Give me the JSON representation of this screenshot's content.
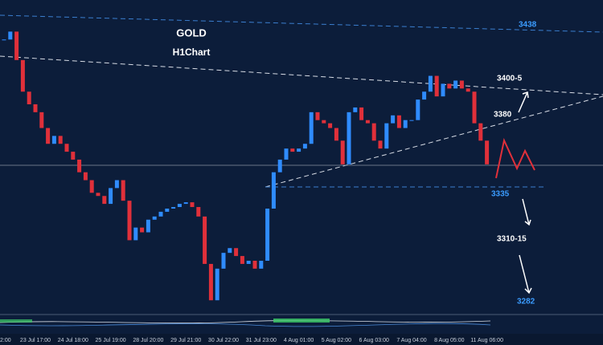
{
  "chart_data": {
    "type": "candlestick",
    "title": "GOLD",
    "subtitle": "H1Chart",
    "categories": [
      "2:00",
      null,
      null,
      null,
      null,
      "23 Jul 17:00",
      null,
      null,
      null,
      null,
      null,
      "24 Jul 18:00",
      null,
      null,
      null,
      null,
      null,
      "25 Jul 19:00",
      null,
      null,
      null,
      null,
      null,
      "28 Jul 20:00",
      null,
      null,
      null,
      null,
      null,
      "29 Jul 21:00",
      null,
      null,
      null,
      null,
      null,
      "30 Jul 22:00",
      null,
      null,
      null,
      null,
      null,
      "31 Jul 23:00",
      null,
      null,
      null,
      null,
      null,
      "4 Aug 01:00",
      null,
      null,
      null,
      null,
      null,
      "5 Aug 02:00",
      null,
      null,
      null,
      null,
      null,
      "6 Aug 03:00",
      null,
      null,
      null,
      null,
      null,
      "7 Aug 04:00",
      null,
      null,
      null,
      null,
      null,
      "8 Aug 05:00",
      null,
      null,
      null,
      null,
      null,
      "11 Aug 06:00"
    ],
    "values": [
      3428,
      3433,
      3415,
      3395,
      3387,
      3382,
      3372,
      3362,
      3367,
      3362,
      3357,
      3352,
      3344,
      3339,
      3331,
      3329,
      3324,
      3334,
      3339,
      3326,
      3301,
      3309,
      3306,
      3314,
      3316,
      3319,
      3321,
      3322,
      3324,
      3325,
      3322,
      3316,
      3286,
      3263,
      3283,
      3293,
      3296,
      3291,
      3286,
      3288,
      3283,
      3288,
      3321,
      3344,
      3352,
      3359,
      3357,
      3359,
      3362,
      3382,
      3377,
      3375,
      3372,
      3364,
      3349,
      3382,
      3385,
      3377,
      3375,
      3364,
      3359,
      3375,
      3380,
      3372,
      3377,
      3377,
      3390,
      3395,
      3405,
      3392,
      3400,
      3397,
      3402,
      3397,
      3395,
      3375,
      3364,
      3349
    ],
    "ylim": [
      3255,
      3453
    ],
    "up_color": "#2f8cff",
    "down_color": "#e0303a",
    "annotations": [
      {
        "text": "3438",
        "color": "#3b9cff"
      },
      {
        "text": "3400-5",
        "color": "#ffffff"
      },
      {
        "text": "3380",
        "color": "#ffffff"
      },
      {
        "text": "3335",
        "color": "#3b9cff"
      },
      {
        "text": "3310-15",
        "color": "#ffffff"
      },
      {
        "text": "3282",
        "color": "#3b9cff"
      }
    ]
  }
}
